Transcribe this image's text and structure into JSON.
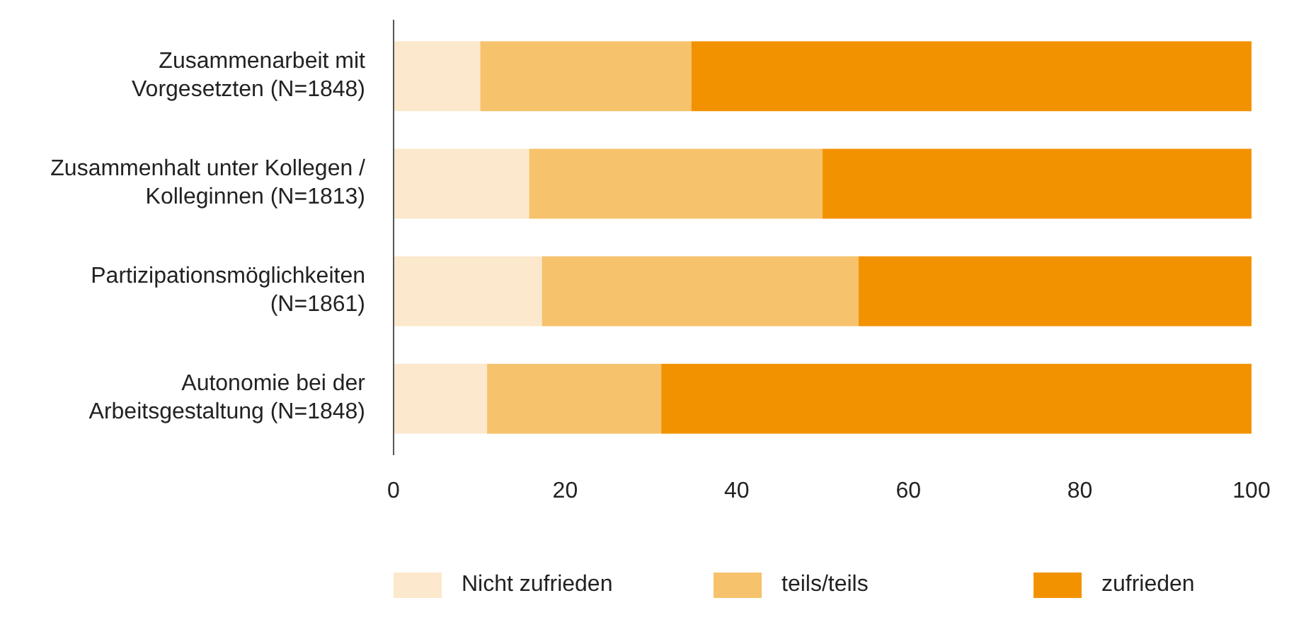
{
  "chart_data": {
    "type": "bar",
    "orientation": "horizontal",
    "stacked": true,
    "categories": [
      "Zusammenarbeit mit Vorgesetzten (N=1848)",
      "Zusammenhalt unter Kollegen / Kolleginnen (N=1813)",
      "Partizipationsmöglichkeiten (N=1861)",
      "Autonomie bei der Arbeitsgestaltung (N=1848)"
    ],
    "series": [
      {
        "name": "Nicht zufrieden",
        "color": "#fce8cc",
        "values": [
          10.1,
          15.8,
          17.3,
          10.9
        ]
      },
      {
        "name": "teils/teils",
        "color": "#f6c26b",
        "values": [
          24.6,
          34.2,
          36.9,
          20.3
        ]
      },
      {
        "name": "zufrieden",
        "color": "#f39200",
        "values": [
          65.3,
          50.0,
          45.8,
          68.8
        ]
      }
    ],
    "xlim": [
      0,
      100
    ],
    "xticks": [
      0,
      20,
      40,
      60,
      80,
      100
    ],
    "grid": false,
    "legend": "bottom"
  }
}
